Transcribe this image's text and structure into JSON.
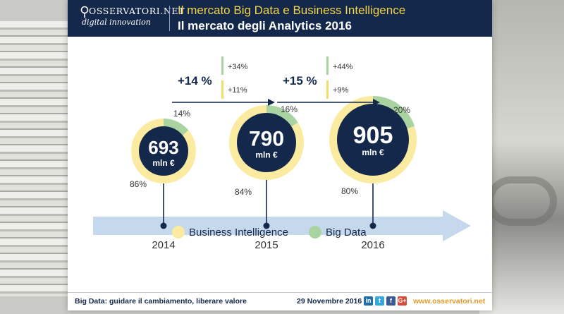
{
  "header": {
    "brand": "OSSERVATORI.NET",
    "brand_sub": "digital innovation",
    "title_line1": "Il mercato Big Data e Business Intelligence",
    "title_line2": "Il mercato degli Analytics 2016"
  },
  "colors": {
    "navy": "#14284b",
    "business_intelligence": "#fbeba0",
    "big_data": "#a9d4a1",
    "timeline": "#c5d8ec",
    "accent_orange": "#e39b2a"
  },
  "chart_data": {
    "type": "pie",
    "title": "Il mercato degli Analytics 2016",
    "unit": "mln €",
    "years": [
      "2014",
      "2015",
      "2016"
    ],
    "totals": [
      693,
      790,
      905
    ],
    "total_labels": [
      "693",
      "790",
      "905"
    ],
    "series": [
      {
        "name": "Business Intelligence",
        "values": [
          86,
          84,
          80
        ],
        "labels": [
          "86%",
          "84%",
          "80%"
        ]
      },
      {
        "name": "Big Data",
        "values": [
          14,
          16,
          20
        ],
        "labels": [
          "14%",
          "16%",
          "20%"
        ]
      }
    ],
    "growth": [
      {
        "period": "2014-2015",
        "total": "+14 %",
        "big_data": "+34%",
        "business_intelligence": "+11%"
      },
      {
        "period": "2015-2016",
        "total": "+15 %",
        "big_data": "+44%",
        "business_intelligence": "+9%"
      }
    ],
    "legend": [
      "Business Intelligence",
      "Big Data"
    ],
    "legend_position": "bottom"
  },
  "footer": {
    "tagline": "Big Data: guidare il cambiamento, liberare valore",
    "date": "29 Novembre 2016",
    "social": [
      {
        "icon": "linkedin-icon",
        "glyph": "in",
        "color": "#1f6ea8"
      },
      {
        "icon": "twitter-icon",
        "glyph": "t",
        "color": "#36a6df"
      },
      {
        "icon": "facebook-icon",
        "glyph": "f",
        "color": "#3b5a98"
      },
      {
        "icon": "googleplus-icon",
        "glyph": "G+",
        "color": "#d64b36"
      }
    ],
    "url": "www.osservatori.net"
  }
}
